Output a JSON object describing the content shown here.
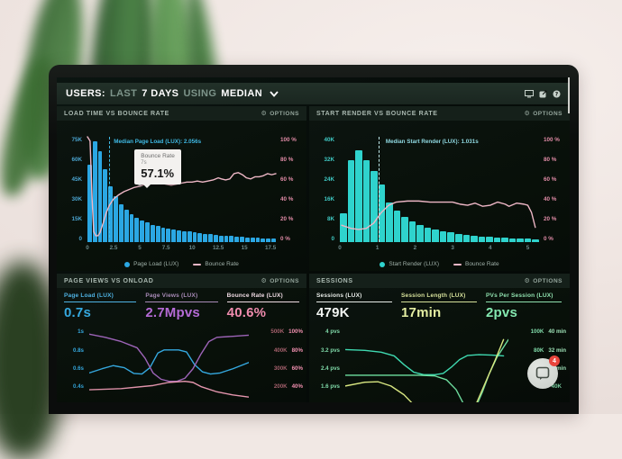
{
  "menubar": {
    "seg_users": "USERS:",
    "seg_last": "LAST",
    "seg_days": "7 DAYS",
    "seg_using": "USING",
    "seg_median": "MEDIAN",
    "icons": [
      "display-icon",
      "share-icon",
      "help-icon"
    ]
  },
  "colors": {
    "page_load_blue": "#2ba7e3",
    "start_render_teal": "#2fd3cd",
    "bounce_pink": "#eeb7c6",
    "annotation_cyan": "#3fb9e4",
    "page_views_purple": "#b56bd6",
    "metric_pink": "#f08cae",
    "sessions_white": "#f2f5f2",
    "session_len_lime": "#e4eea2",
    "pvs_mint": "#84e8b0"
  },
  "chat": {
    "badge": "4"
  },
  "panels": {
    "load_time": {
      "title": "LOAD TIME VS BOUNCE RATE",
      "options": "OPTIONS",
      "y_left": [
        "75K",
        "60K",
        "45K",
        "30K",
        "15K",
        "0"
      ],
      "y_right": [
        "100 %",
        "80 %",
        "60 %",
        "40 %",
        "20 %",
        "0 %"
      ],
      "annotation": "Median Page Load (LUX): 2.056s",
      "tooltip": {
        "title": "Bounce Rate",
        "sub": "7s",
        "value": "57.1%"
      },
      "legend": [
        {
          "label": "Page Load (LUX)",
          "color": "#2ba7e3",
          "type": "dot"
        },
        {
          "label": "Bounce Rate",
          "color": "#eeb7c6",
          "type": "line"
        }
      ],
      "chart_data": {
        "type": "bar",
        "bar_color": "#2ba7e3",
        "bar_max": 75,
        "bin_width": 0.5,
        "bars": [
          55,
          72,
          65,
          52,
          40,
          33,
          27,
          23,
          20,
          17.5,
          15.5,
          14,
          12.5,
          11.5,
          10.5,
          9.5,
          9,
          8.5,
          8,
          7.5,
          7,
          6.5,
          6,
          5.5,
          5,
          4.8,
          4.5,
          4.2,
          4,
          3.8,
          3.5,
          3.2,
          3,
          2.8,
          2.6,
          2.4
        ],
        "median_value": 2.056,
        "xmax": 18,
        "x_ticks": [
          {
            "v": 0,
            "t": "0"
          },
          {
            "v": 2.5,
            "t": "2.5"
          },
          {
            "v": 5,
            "t": "5"
          },
          {
            "v": 7.5,
            "t": "7.5"
          },
          {
            "v": 10,
            "t": "10"
          },
          {
            "v": 12.5,
            "t": "12.5"
          },
          {
            "v": 15,
            "t": "15"
          },
          {
            "v": 17.5,
            "t": "17.5"
          }
        ],
        "line_color": "#eeb7c6",
        "line": [
          [
            0,
            100
          ],
          [
            0.25,
            96
          ],
          [
            0.45,
            40
          ],
          [
            0.6,
            10
          ],
          [
            0.8,
            6
          ],
          [
            1.0,
            6
          ],
          [
            1.2,
            9
          ],
          [
            1.5,
            18
          ],
          [
            1.8,
            28
          ],
          [
            2.1,
            35
          ],
          [
            2.5,
            41
          ],
          [
            3,
            45
          ],
          [
            3.5,
            48
          ],
          [
            4,
            50
          ],
          [
            4.5,
            52
          ],
          [
            5,
            53
          ],
          [
            5.5,
            55
          ],
          [
            6,
            56
          ],
          [
            6.5,
            56
          ],
          [
            7,
            56
          ],
          [
            7.5,
            55
          ],
          [
            8,
            54
          ],
          [
            8.5,
            55
          ],
          [
            9,
            56
          ],
          [
            9.5,
            57
          ],
          [
            10,
            57
          ],
          [
            10.5,
            58
          ],
          [
            11,
            57
          ],
          [
            11.5,
            58
          ],
          [
            12,
            59
          ],
          [
            12.5,
            61
          ],
          [
            12.8,
            60
          ],
          [
            13.2,
            59
          ],
          [
            13.6,
            60
          ],
          [
            14,
            65
          ],
          [
            14.4,
            66
          ],
          [
            14.8,
            64
          ],
          [
            15.2,
            61
          ],
          [
            15.6,
            60
          ],
          [
            16,
            62
          ],
          [
            16.4,
            62
          ],
          [
            16.8,
            63
          ],
          [
            17.2,
            65
          ],
          [
            17.6,
            64
          ],
          [
            18,
            65
          ]
        ]
      }
    },
    "start_render": {
      "title": "START RENDER VS BOUNCE RATE",
      "options": "OPTIONS",
      "y_left": [
        "40K",
        "32K",
        "24K",
        "16K",
        "8K",
        "0"
      ],
      "y_right": [
        "100 %",
        "80 %",
        "60 %",
        "40 %",
        "20 %",
        "0 %"
      ],
      "annotation": "Median Start Render (LUX): 1.031s",
      "legend": [
        {
          "label": "Start Render (LUX)",
          "color": "#2fd3cd",
          "type": "dot"
        },
        {
          "label": "Bounce Rate",
          "color": "#eeb7c6",
          "type": "line"
        }
      ],
      "chart_data": {
        "type": "bar",
        "bar_color": "#2fd3cd",
        "bar_max": 40,
        "bin_width": 0.2,
        "bars": [
          11,
          31,
          35,
          31,
          27,
          22,
          15,
          12,
          9.5,
          8,
          6.5,
          5.5,
          4.8,
          4.2,
          3.6,
          3.2,
          2.8,
          2.5,
          2.2,
          2.0,
          1.8,
          1.6,
          1.5,
          1.4,
          1.3,
          1.2
        ],
        "median_value": 1.031,
        "xmax": 5.3,
        "x_ticks": [
          {
            "v": 0,
            "t": "0"
          },
          {
            "v": 1,
            "t": "1"
          },
          {
            "v": 2,
            "t": "2"
          },
          {
            "v": 3,
            "t": "3"
          },
          {
            "v": 4,
            "t": "4"
          },
          {
            "v": 5,
            "t": "5"
          }
        ],
        "line_color": "#eeb7c6",
        "line": [
          [
            0.05,
            16
          ],
          [
            0.3,
            13
          ],
          [
            0.5,
            12
          ],
          [
            0.7,
            13
          ],
          [
            0.9,
            18
          ],
          [
            1.1,
            28
          ],
          [
            1.3,
            35
          ],
          [
            1.5,
            38
          ],
          [
            1.8,
            39
          ],
          [
            2.1,
            39
          ],
          [
            2.4,
            38
          ],
          [
            2.7,
            38
          ],
          [
            3.0,
            38
          ],
          [
            3.2,
            36
          ],
          [
            3.4,
            35
          ],
          [
            3.6,
            37
          ],
          [
            3.8,
            34
          ],
          [
            4.0,
            35
          ],
          [
            4.2,
            38
          ],
          [
            4.4,
            36
          ],
          [
            4.5,
            34
          ],
          [
            4.7,
            37
          ],
          [
            4.9,
            36
          ],
          [
            5.0,
            35
          ],
          [
            5.1,
            28
          ],
          [
            5.2,
            14
          ]
        ]
      }
    },
    "page_views": {
      "title": "PAGE VIEWS VS ONLOAD",
      "options": "OPTIONS",
      "metrics": [
        {
          "label": "Page Load (LUX)",
          "value": "0.7s",
          "label_color": "#4fb3e4",
          "value_color": "#35a9e0"
        },
        {
          "label": "Page Views (LUX)",
          "value": "2.7Mpvs",
          "label_color": "#a98bb8",
          "value_color": "#b56bd6"
        },
        {
          "label": "Bounce Rate (LUX)",
          "value": "40.6%",
          "label_color": "#f0dce4",
          "value_color": "#f08cae"
        }
      ],
      "y_left": [
        "1s",
        "0.8s",
        "0.6s",
        "0.4s"
      ],
      "y_right": [
        [
          "500K",
          "100%"
        ],
        [
          "400K",
          "80%"
        ],
        [
          "300K",
          "60%"
        ],
        [
          "200K",
          "40%"
        ]
      ],
      "chart_data": {
        "type": "line",
        "ymin": 0.3,
        "ymax": 1.03,
        "series": [
          {
            "name": "Page Load",
            "color": "#35a9e0",
            "points": [
              [
                0,
                0.58
              ],
              [
                0.08,
                0.62
              ],
              [
                0.15,
                0.65
              ],
              [
                0.22,
                0.63
              ],
              [
                0.28,
                0.575
              ],
              [
                0.33,
                0.57
              ],
              [
                0.38,
                0.63
              ],
              [
                0.43,
                0.77
              ],
              [
                0.47,
                0.8
              ],
              [
                0.56,
                0.8
              ],
              [
                0.61,
                0.78
              ],
              [
                0.66,
                0.66
              ],
              [
                0.71,
                0.59
              ],
              [
                0.76,
                0.57
              ],
              [
                0.82,
                0.58
              ],
              [
                0.9,
                0.62
              ],
              [
                1,
                0.68
              ]
            ]
          },
          {
            "name": "Page Views",
            "color": "#9d64b8",
            "points": [
              [
                0,
                0.95
              ],
              [
                0.1,
                0.92
              ],
              [
                0.2,
                0.88
              ],
              [
                0.3,
                0.82
              ],
              [
                0.35,
                0.72
              ],
              [
                0.4,
                0.58
              ],
              [
                0.45,
                0.52
              ],
              [
                0.5,
                0.5
              ],
              [
                0.55,
                0.5
              ],
              [
                0.6,
                0.53
              ],
              [
                0.65,
                0.62
              ],
              [
                0.7,
                0.76
              ],
              [
                0.75,
                0.88
              ],
              [
                0.8,
                0.92
              ],
              [
                0.9,
                0.93
              ],
              [
                1,
                0.94
              ]
            ]
          },
          {
            "name": "Bounce Rate",
            "color": "#e898b0",
            "points": [
              [
                0,
                0.42
              ],
              [
                0.2,
                0.43
              ],
              [
                0.4,
                0.46
              ],
              [
                0.5,
                0.49
              ],
              [
                0.6,
                0.5
              ],
              [
                0.65,
                0.49
              ],
              [
                0.7,
                0.45
              ],
              [
                0.8,
                0.4
              ],
              [
                0.9,
                0.37
              ],
              [
                1,
                0.35
              ]
            ]
          }
        ]
      }
    },
    "sessions": {
      "title": "SESSIONS",
      "options": "OPTIONS",
      "metrics": [
        {
          "label": "Sessions (LUX)",
          "value": "479K",
          "label_color": "#e8ece8",
          "value_color": "#f2f5f2"
        },
        {
          "label": "Session Length (LUX)",
          "value": "17min",
          "label_color": "#d5e09a",
          "value_color": "#e4eea2"
        },
        {
          "label": "PVs Per Session (LUX)",
          "value": "2pvs",
          "label_color": "#8fe0ae",
          "value_color": "#84e8b0"
        }
      ],
      "y_left": [
        "4 pvs",
        "3.2 pvs",
        "2.4 pvs",
        "1.6 pvs"
      ],
      "y_right": [
        [
          "100K",
          "40 min"
        ],
        [
          "80K",
          "32 min"
        ],
        [
          "60K",
          "24 min"
        ],
        [
          "40K",
          ""
        ]
      ],
      "chart_data": {
        "type": "line",
        "ymin": 1.1,
        "ymax": 4.15,
        "series": [
          {
            "name": "PVs Per Session",
            "color": "#3fd9b0",
            "points": [
              [
                0,
                3.2
              ],
              [
                0.12,
                3.17
              ],
              [
                0.22,
                3.1
              ],
              [
                0.3,
                2.95
              ],
              [
                0.36,
                2.6
              ],
              [
                0.42,
                2.3
              ],
              [
                0.48,
                2.2
              ],
              [
                0.55,
                2.2
              ],
              [
                0.6,
                2.25
              ],
              [
                0.65,
                2.5
              ],
              [
                0.7,
                2.8
              ],
              [
                0.75,
                2.97
              ],
              [
                0.82,
                3.0
              ],
              [
                0.9,
                2.98
              ],
              [
                0.97,
                2.95
              ]
            ]
          },
          {
            "name": "Sessions",
            "color": "#6fe0a0",
            "points": [
              [
                0,
                2.18
              ],
              [
                0.45,
                2.18
              ],
              [
                0.55,
                2.15
              ],
              [
                0.62,
                2.0
              ],
              [
                0.68,
                1.6
              ],
              [
                0.72,
                1.1
              ],
              [
                0.76,
                0.7
              ],
              [
                0.8,
                0.9
              ],
              [
                0.84,
                1.5
              ],
              [
                0.88,
                2.2
              ],
              [
                0.93,
                2.9
              ],
              [
                1,
                3.6
              ]
            ]
          },
          {
            "name": "Session Length",
            "color": "#d9e882",
            "points": [
              [
                0,
                1.75
              ],
              [
                0.12,
                1.9
              ],
              [
                0.2,
                1.92
              ],
              [
                0.28,
                1.75
              ],
              [
                0.36,
                1.4
              ],
              [
                0.42,
                1.0
              ],
              [
                0.46,
                0.6
              ],
              [
                0.5,
                0.2
              ],
              [
                0.74,
                0.2
              ],
              [
                0.8,
                1.0
              ],
              [
                0.86,
                1.9
              ],
              [
                0.92,
                2.8
              ],
              [
                0.97,
                3.6
              ]
            ]
          }
        ]
      }
    }
  }
}
